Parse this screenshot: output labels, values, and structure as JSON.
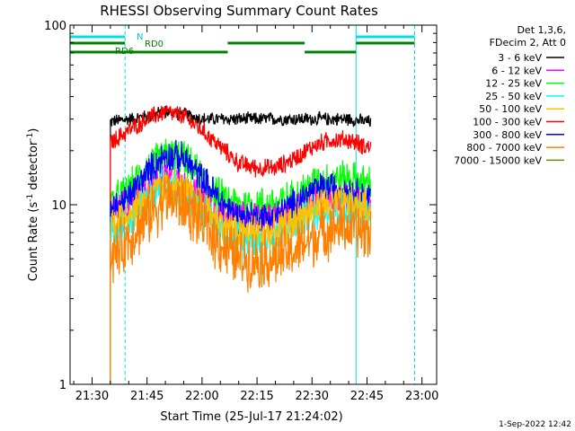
{
  "chart_data": {
    "type": "line",
    "title": "RHESSI Observing Summary Count Rates",
    "xlabel": "Start Time (25-Jul-17 21:24:02)",
    "ylabel": "Count Rate (s",
    "ylabel_sup": "-1",
    "ylabel_tail": " detector",
    "ylabel_tail_sup": "-1",
    "ylabel_close": ")",
    "y_scale": "log",
    "ylim": [
      1,
      100
    ],
    "xlim": [
      "21:24",
      "23:04"
    ],
    "x_ticks": [
      "21:30",
      "21:45",
      "22:00",
      "22:15",
      "22:30",
      "22:45",
      "23:00"
    ],
    "y_ticks": [
      "1",
      "10",
      "100"
    ],
    "footer_date": "1-Sep-2022 12:42",
    "legend": {
      "header": [
        "Det 1,3,6,",
        "FDecim 2, Att 0"
      ],
      "entries": [
        {
          "label": "3 - 6 keV",
          "color": "#000000"
        },
        {
          "label": "6 - 12 keV",
          "color": "#ff00ff"
        },
        {
          "label": "12 - 25 keV",
          "color": "#00ff00"
        },
        {
          "label": "25 - 50 keV",
          "color": "#00ffff"
        },
        {
          "label": "50 - 100 keV",
          "color": "#ffc000"
        },
        {
          "label": "100 - 300 keV",
          "color": "#ff0000"
        },
        {
          "label": "300 - 800 keV",
          "color": "#0000ff"
        },
        {
          "label": "800 - 7000 keV",
          "color": "#ff8000"
        },
        {
          "label": "7000 - 15000 keV",
          "color": "#808000"
        }
      ]
    },
    "annotations": {
      "night_label": "N",
      "rd0_label": "RD0",
      "rd6_label": "RD6"
    },
    "night_intervals": [
      [
        "21:24",
        "21:39"
      ],
      [
        "22:42",
        "22:58"
      ]
    ],
    "night_boundary_times": [
      "21:24",
      "21:39",
      "22:42",
      "22:58"
    ],
    "rd0_intervals": [
      [
        "21:24",
        "21:39"
      ],
      [
        "22:07",
        "22:28"
      ],
      [
        "22:42",
        "22:58"
      ]
    ],
    "rd6_intervals": [
      [
        "21:24",
        "22:07"
      ],
      [
        "22:28",
        "22:42"
      ]
    ],
    "data_start": "21:35",
    "data_end": "22:46",
    "series": [
      {
        "name": "3 - 6 keV",
        "color": "#000000",
        "x": [
          "21:35",
          "21:40",
          "21:45",
          "21:50",
          "21:55",
          "22:00",
          "22:05",
          "22:10",
          "22:15",
          "22:20",
          "22:25",
          "22:30",
          "22:35",
          "22:40",
          "22:45"
        ],
        "y": [
          29,
          30,
          31,
          33,
          32,
          30,
          30,
          30,
          30,
          30,
          30,
          30,
          30,
          30,
          29
        ]
      },
      {
        "name": "100 - 300 keV",
        "color": "#ff0000",
        "x": [
          "21:35",
          "21:40",
          "21:45",
          "21:50",
          "21:55",
          "22:00",
          "22:05",
          "22:10",
          "22:15",
          "22:20",
          "22:25",
          "22:30",
          "22:35",
          "22:40",
          "22:45"
        ],
        "y": [
          22,
          26,
          30,
          33,
          31,
          26,
          21,
          17,
          16,
          16,
          18,
          21,
          23,
          23,
          21
        ]
      },
      {
        "name": "12 - 25 keV",
        "color": "#00ff00",
        "x": [
          "21:35",
          "21:40",
          "21:45",
          "21:50",
          "21:55",
          "22:00",
          "22:05",
          "22:10",
          "22:15",
          "22:20",
          "22:25",
          "22:30",
          "22:35",
          "22:40",
          "22:45"
        ],
        "y": [
          10,
          12,
          16,
          19,
          18,
          14,
          11,
          10,
          10,
          10,
          11,
          13,
          14,
          14,
          13
        ]
      },
      {
        "name": "6 - 12 keV",
        "color": "#ff00ff",
        "x": [
          "21:35",
          "21:40",
          "21:45",
          "21:50",
          "21:55",
          "22:00",
          "22:05",
          "22:10",
          "22:15",
          "22:20",
          "22:25",
          "22:30",
          "22:35",
          "22:40",
          "22:45"
        ],
        "y": [
          9,
          10,
          12,
          14,
          13,
          11,
          9,
          8.5,
          8.5,
          8.5,
          9,
          10,
          11,
          11,
          10
        ]
      },
      {
        "name": "300 - 800 keV",
        "color": "#0000ff",
        "x": [
          "21:35",
          "21:40",
          "21:45",
          "21:50",
          "21:55",
          "22:00",
          "22:05",
          "22:10",
          "22:15",
          "22:20",
          "22:25",
          "22:30",
          "22:35",
          "22:40",
          "22:45"
        ],
        "y": [
          9,
          11,
          15,
          19,
          18,
          14,
          10.5,
          8.5,
          8.5,
          8.5,
          10,
          12,
          12.5,
          12,
          11
        ]
      },
      {
        "name": "25 - 50 keV",
        "color": "#00ffff",
        "x": [
          "21:35",
          "21:40",
          "21:45",
          "21:50",
          "21:55",
          "22:00",
          "22:05",
          "22:10",
          "22:15",
          "22:20",
          "22:25",
          "22:30",
          "22:35",
          "22:40",
          "22:45"
        ],
        "y": [
          7,
          8,
          10.5,
          12.5,
          12,
          9.5,
          7.5,
          6.5,
          6.5,
          6.5,
          7.5,
          9,
          9.5,
          9.5,
          9
        ]
      },
      {
        "name": "50 - 100 keV",
        "color": "#ffc000",
        "x": [
          "21:35",
          "21:40",
          "21:45",
          "21:50",
          "21:55",
          "22:00",
          "22:05",
          "22:10",
          "22:15",
          "22:20",
          "22:25",
          "22:30",
          "22:35",
          "22:40",
          "22:45"
        ],
        "y": [
          8,
          9,
          11,
          12.5,
          12,
          10,
          8,
          7,
          7,
          7,
          8,
          9.5,
          10,
          10,
          9.5
        ]
      },
      {
        "name": "800 - 7000 keV",
        "color": "#ff8000",
        "x": [
          "21:35",
          "21:40",
          "21:45",
          "21:50",
          "21:55",
          "22:00",
          "22:05",
          "22:10",
          "22:15",
          "22:20",
          "22:25",
          "22:30",
          "22:35",
          "22:40",
          "22:45"
        ],
        "y": [
          5,
          6.5,
          8.5,
          11,
          10,
          8,
          6,
          5,
          5,
          5,
          5.5,
          6.5,
          7.5,
          7.5,
          7
        ]
      }
    ]
  }
}
